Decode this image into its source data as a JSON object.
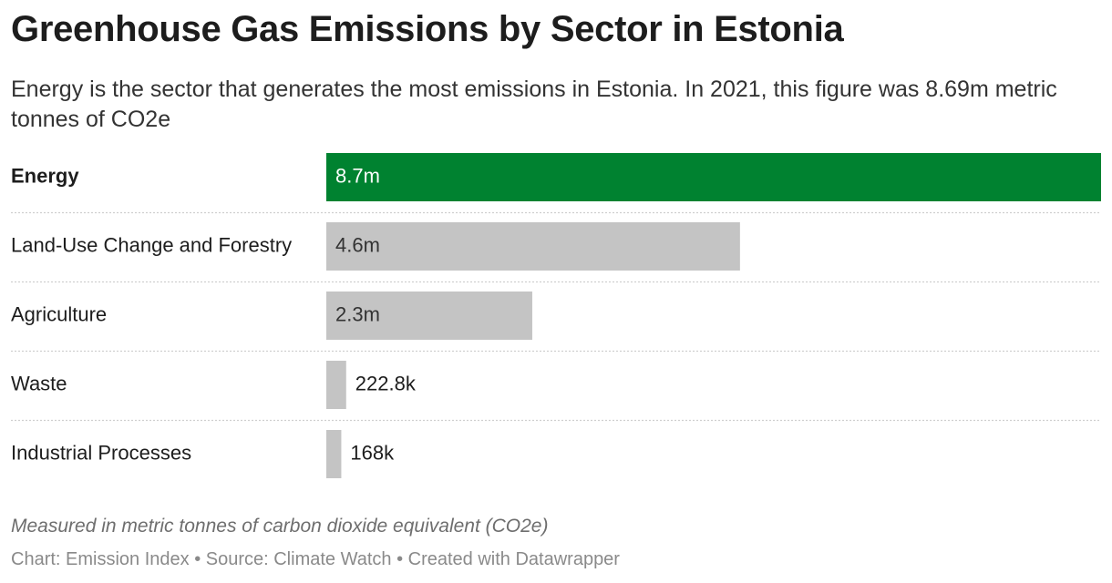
{
  "chart_data": {
    "type": "bar",
    "title": "Greenhouse Gas Emissions by Sector in Estonia",
    "subtitle": "Energy is the sector that generates the most emissions in Estonia. In 2021, this figure was 8.69m metric tonnes of CO2e",
    "categories": [
      "Energy",
      "Land-Use Change and Forestry",
      "Agriculture",
      "Waste",
      "Industrial Processes"
    ],
    "values": [
      8690000,
      4640000,
      2310000,
      222800,
      168000
    ],
    "value_labels": [
      "8.7m",
      "4.6m",
      "2.3m",
      "222.8k",
      "168k"
    ],
    "colors": [
      "#008230",
      "#c4c4c4",
      "#c4c4c4",
      "#c4c4c4",
      "#c4c4c4"
    ],
    "note": "Measured in metric tonnes of carbon dioxide equivalent (CO2e)",
    "footer": "Chart: Emission Index • Source: Climate Watch • Created with Datawrapper"
  }
}
